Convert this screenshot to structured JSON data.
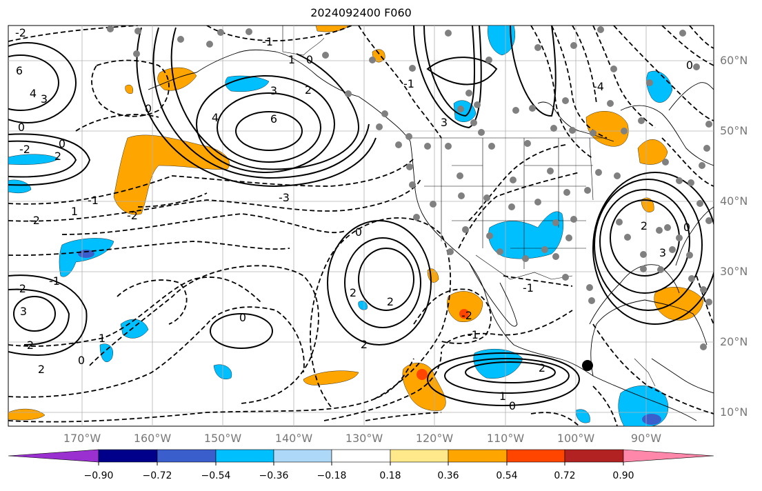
{
  "title": "2024092400 F060",
  "longitude_labels": [
    "170°W",
    "160°W",
    "150°W",
    "140°W",
    "130°W",
    "120°W",
    "110°W",
    "100°W",
    "90°W"
  ],
  "latitude_labels": [
    "60°N",
    "50°N",
    "40°N",
    "30°N",
    "20°N",
    "10°N"
  ],
  "colorbar": {
    "tick_labels": [
      "−0.90",
      "−0.72",
      "−0.54",
      "−0.36",
      "−0.18",
      "0.18",
      "0.36",
      "0.54",
      "0.72",
      "0.90"
    ],
    "colors": [
      "#9b30d0",
      "#00008b",
      "#3a5fcd",
      "#00bfff",
      "#add8f7",
      "#ffffff",
      "#ffe98a",
      "#ffa500",
      "#ff4500",
      "#b22222",
      "#ff88aa"
    ]
  },
  "contour_labels": [
    {
      "text": "-2"
    },
    {
      "text": "-1"
    },
    {
      "text": "0"
    },
    {
      "text": "6"
    },
    {
      "text": "4"
    },
    {
      "text": "3"
    },
    {
      "text": "2"
    },
    {
      "text": "0"
    },
    {
      "text": "3"
    },
    {
      "text": "6"
    },
    {
      "text": "4"
    },
    {
      "text": "0"
    },
    {
      "text": "-2"
    },
    {
      "text": "0"
    },
    {
      "text": "2"
    },
    {
      "text": "1"
    },
    {
      "text": "-1"
    },
    {
      "text": "-2"
    },
    {
      "text": "-2"
    },
    {
      "text": "-3"
    },
    {
      "text": "0"
    },
    {
      "text": "-2"
    },
    {
      "text": "-1"
    },
    {
      "text": "2"
    },
    {
      "text": "3"
    },
    {
      "text": "2"
    },
    {
      "text": "1"
    },
    {
      "text": "2"
    },
    {
      "text": "0"
    },
    {
      "text": "0"
    },
    {
      "text": "2"
    },
    {
      "text": "2"
    },
    {
      "text": "-2"
    },
    {
      "text": "-1"
    },
    {
      "text": "-1"
    },
    {
      "text": "2"
    },
    {
      "text": "1"
    },
    {
      "text": "0"
    },
    {
      "text": "3"
    },
    {
      "text": "-4"
    },
    {
      "text": "-1"
    },
    {
      "text": "2"
    },
    {
      "text": "3"
    },
    {
      "text": "0"
    },
    {
      "text": "1"
    },
    {
      "text": "0"
    }
  ]
}
